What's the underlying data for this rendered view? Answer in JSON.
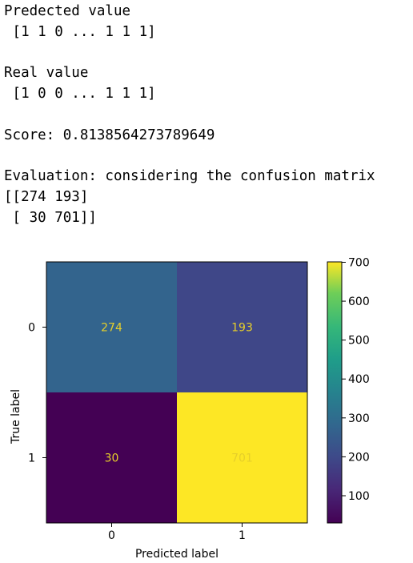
{
  "output": {
    "predicted_label": "Predected value",
    "predicted_array": " [1 1 0 ... 1 1 1]",
    "real_label": "Real value",
    "real_array": " [1 0 0 ... 1 1 1]",
    "score_text": "Score: 0.8138564273789649",
    "evaluation_text": "Evaluation: considering the confusion matrix",
    "matrix_line_1": "[[274 193]",
    "matrix_line_2": " [ 30 701]]"
  },
  "chart_data": {
    "type": "heatmap",
    "title": "",
    "xlabel": "Predicted label",
    "ylabel": "True label",
    "x_categories": [
      "0",
      "1"
    ],
    "y_categories": [
      "0",
      "1"
    ],
    "values": [
      [
        274,
        193
      ],
      [
        30,
        701
      ]
    ],
    "colormap": "viridis",
    "colorbar": {
      "min": 30,
      "max": 701,
      "ticks": [
        100,
        200,
        300,
        400,
        500,
        600,
        700
      ]
    },
    "cell_text_color": "#e6cf2a"
  }
}
